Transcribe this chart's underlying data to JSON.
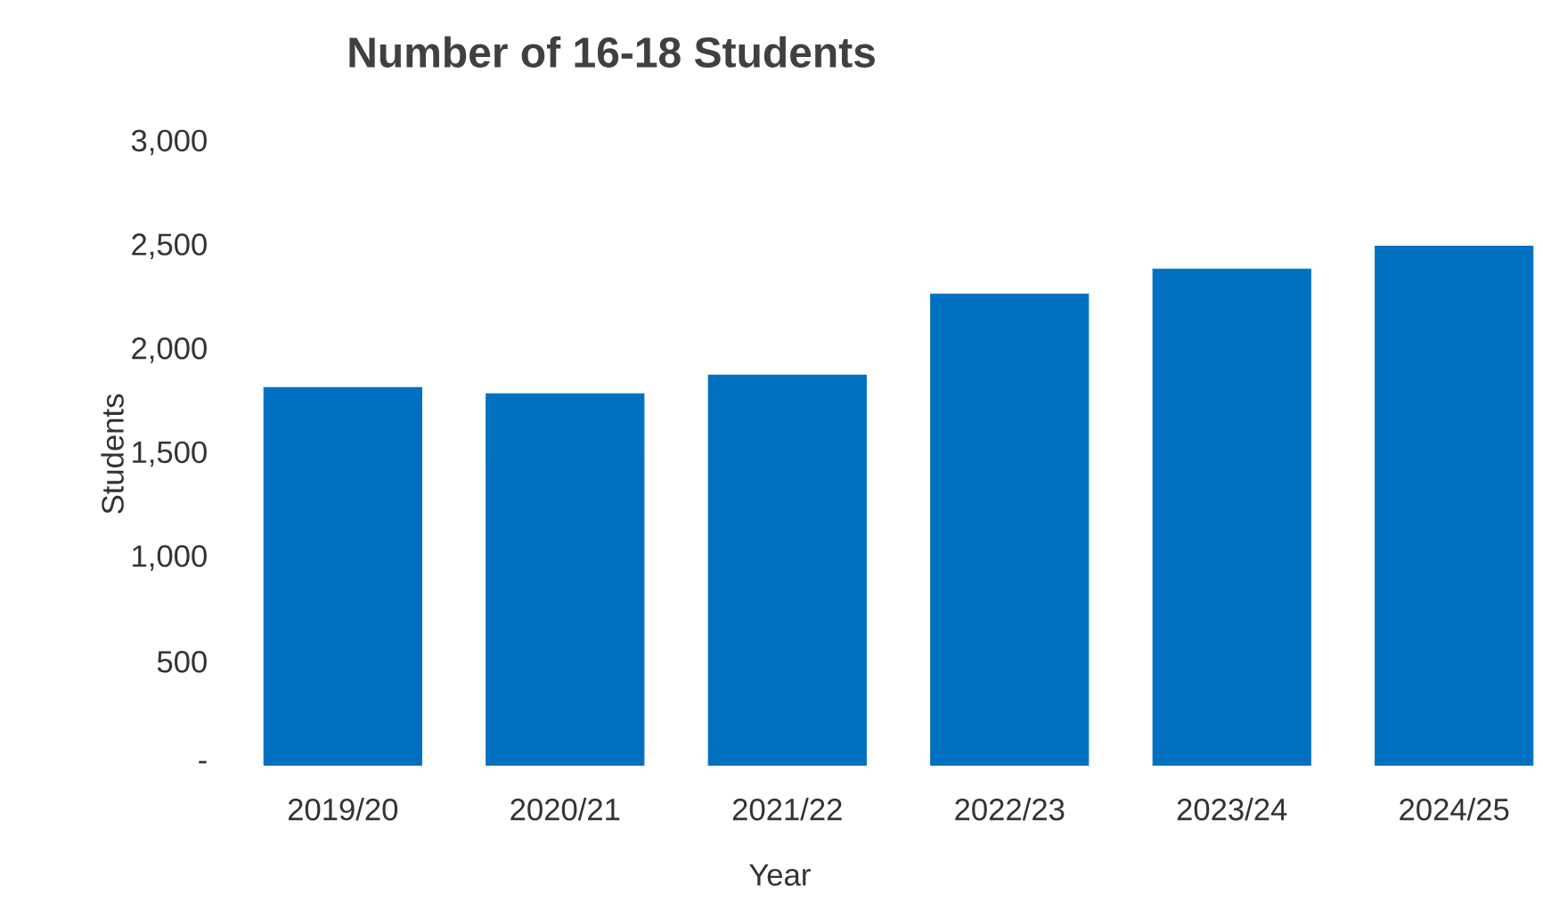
{
  "chart_data": {
    "type": "bar",
    "title": "Number of 16-18 Students",
    "xlabel": "Year",
    "ylabel": "Students",
    "categories": [
      "2019/20",
      "2020/21",
      "2021/22",
      "2022/23",
      "2023/24",
      "2024/25"
    ],
    "values": [
      1820,
      1790,
      1880,
      2270,
      2390,
      2500
    ],
    "color": "#0070c0",
    "ylim": [
      0,
      3000
    ],
    "yticks": [
      {
        "value": 0,
        "label": "-"
      },
      500,
      {
        "value": 1000,
        "label": "1,000"
      },
      {
        "value": 1500,
        "label": "1,500"
      },
      {
        "value": 2000,
        "label": "2,000"
      },
      {
        "value": 2500,
        "label": "2,500"
      },
      {
        "value": 3000,
        "label": "3,000"
      }
    ]
  }
}
